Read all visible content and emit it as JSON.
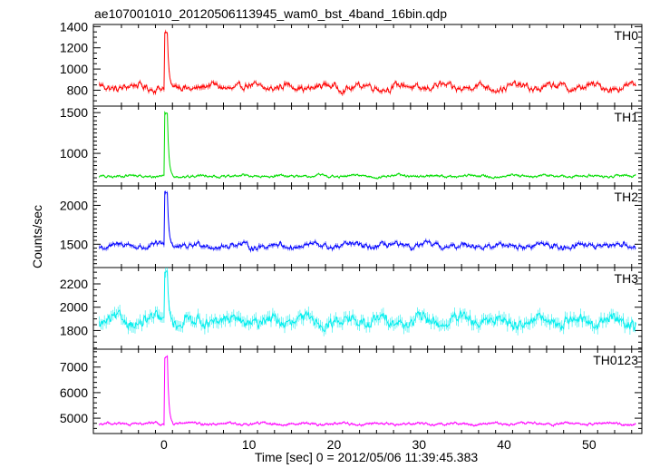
{
  "title": "ae107001010_20120506113945_wam0_bst_4band_16bin.qdp",
  "xlabel": "Time [sec] 0 = 2012/05/06 11:39:45.383",
  "ylabel": "Counts/sec",
  "chart_data": [
    {
      "type": "line",
      "panel": "TH0",
      "color": "#ff0000",
      "xlim": [
        -8.3,
        56.2
      ],
      "ylim": [
        650,
        1420
      ],
      "yticks": [
        800,
        1000,
        1200,
        1400
      ],
      "xticks": [
        0,
        10,
        20,
        30,
        40,
        50
      ],
      "baseline": 830,
      "noise": 60,
      "peak": 1360,
      "error": 18
    },
    {
      "type": "line",
      "panel": "TH1",
      "color": "#00dd00",
      "xlim": [
        -8.3,
        56.2
      ],
      "ylim": [
        600,
        1580
      ],
      "yticks": [
        1000,
        1500
      ],
      "xticks": [
        0,
        10,
        20,
        30,
        40,
        50
      ],
      "baseline": 720,
      "noise": 30,
      "peak": 1520,
      "error": 12
    },
    {
      "type": "line",
      "panel": "TH2",
      "color": "#0000ff",
      "xlim": [
        -8.3,
        56.2
      ],
      "ylim": [
        1200,
        2250
      ],
      "yticks": [
        1500,
        2000
      ],
      "xticks": [
        0,
        10,
        20,
        30,
        40,
        50
      ],
      "baseline": 1480,
      "noise": 65,
      "peak": 2180,
      "error": 25
    },
    {
      "type": "line",
      "panel": "TH3",
      "color": "#00eeee",
      "xlim": [
        -8.3,
        56.2
      ],
      "ylim": [
        1640,
        2340
      ],
      "yticks": [
        1800,
        2000,
        2200
      ],
      "xticks": [
        0,
        10,
        20,
        30,
        40,
        50
      ],
      "baseline": 1880,
      "noise": 85,
      "peak": 2320,
      "error": 45
    },
    {
      "type": "line",
      "panel": "TH0123",
      "color": "#ff00ff",
      "xlim": [
        -8.3,
        56.2
      ],
      "ylim": [
        4400,
        7700
      ],
      "yticks": [
        5000,
        6000,
        7000
      ],
      "xticks": [
        0,
        10,
        20,
        30,
        40,
        50
      ],
      "baseline": 4780,
      "noise": 90,
      "peak": 7450,
      "error": 40
    }
  ]
}
